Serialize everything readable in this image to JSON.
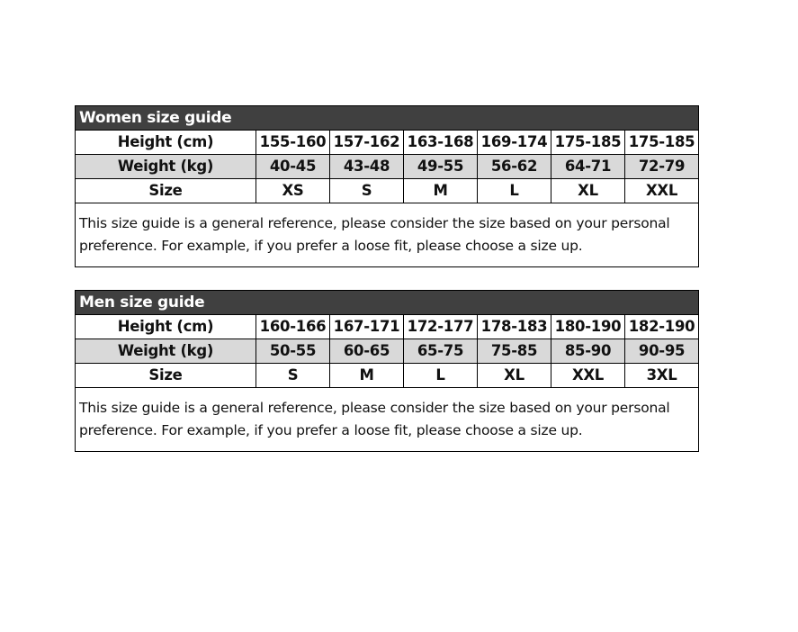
{
  "guides": [
    {
      "id": "women",
      "title": "Women size guide",
      "rows": [
        {
          "label": "Height (cm)",
          "values": [
            "155-160",
            "157-162",
            "163-168",
            "169-174",
            "175-185",
            "175-185"
          ]
        },
        {
          "label": "Weight (kg)",
          "values": [
            "40-45",
            "43-48",
            "49-55",
            "56-62",
            "64-71",
            "72-79"
          ]
        },
        {
          "label": "Size",
          "values": [
            "XS",
            "S",
            "M",
            "L",
            "XL",
            "XXL"
          ]
        }
      ],
      "note": "This size guide is a general reference, please consider the size based on your personal preference. For example, if you prefer a loose fit,  please choose a size up."
    },
    {
      "id": "men",
      "title": "Men size guide",
      "rows": [
        {
          "label": "Height (cm)",
          "values": [
            "160-166",
            "167-171",
            "172-177",
            "178-183",
            "180-190",
            "182-190"
          ]
        },
        {
          "label": "Weight (kg)",
          "values": [
            "50-55",
            "60-65",
            "65-75",
            "75-85",
            "85-90",
            "90-95"
          ]
        },
        {
          "label": "Size",
          "values": [
            "S",
            "M",
            "L",
            "XL",
            "XXL",
            "3XL"
          ]
        }
      ],
      "note": "This size guide is a general reference, please consider the size based on your personal preference. For example, if you prefer a loose fit,  please choose a size up."
    }
  ],
  "colors": {
    "header_bg": "#404040",
    "shaded_row": "#d9d9d9"
  }
}
